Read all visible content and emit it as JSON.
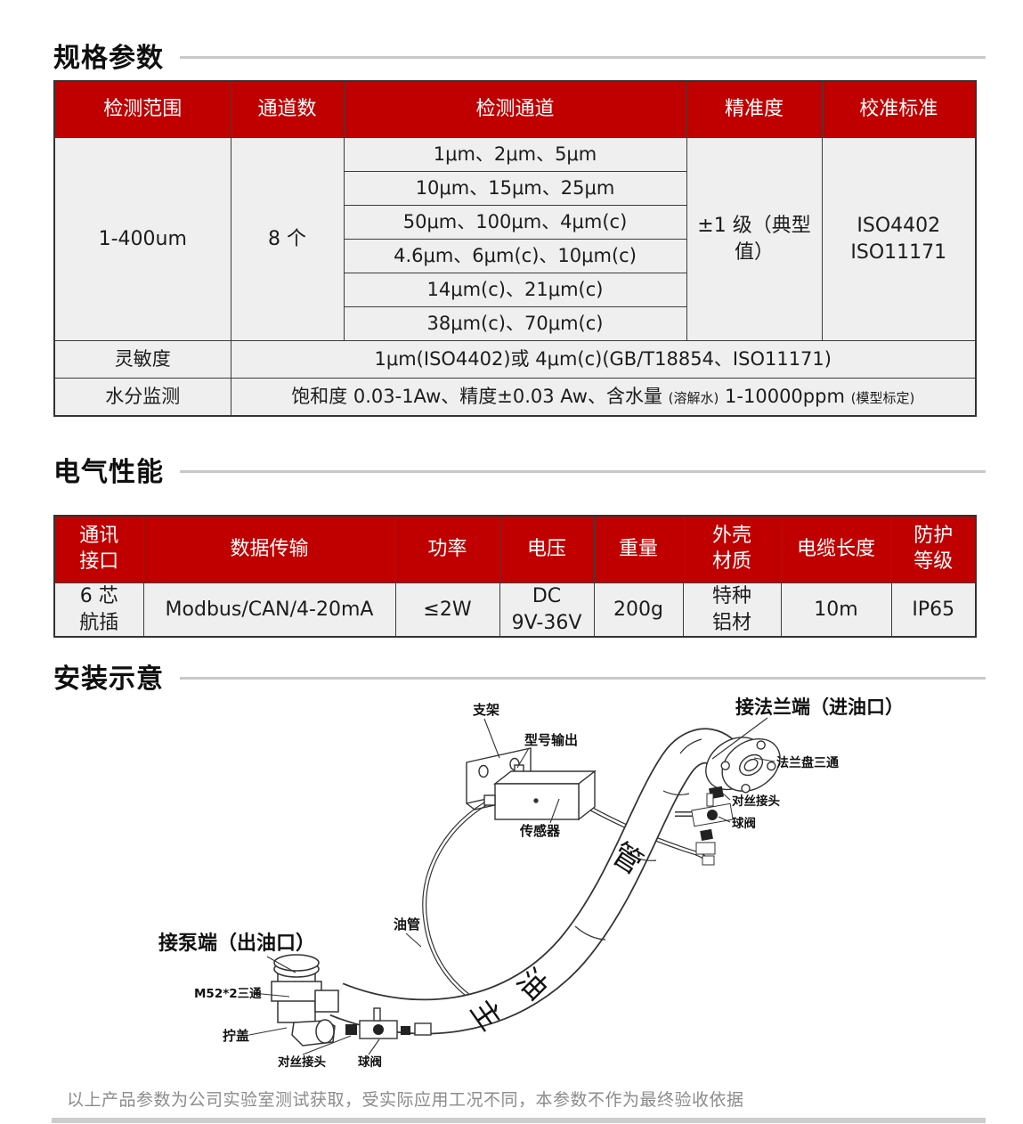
{
  "colors": {
    "header_red": "#c00000",
    "cell_bg": "#f0efef",
    "divider_gray": "#c9c9c9"
  },
  "sections": {
    "spec_title": "规格参数",
    "electrical_title": "电气性能",
    "install_title": "安装示意"
  },
  "spec_table": {
    "headers": [
      "检测范围",
      "通道数",
      "检测通道",
      "精准度",
      "校准标准"
    ],
    "range": "1-400um",
    "channel_count": "8 个",
    "channels": [
      "1μm、2μm、5μm",
      "10μm、15μm、25μm",
      "50μm、100μm、4μm(c)",
      "4.6μm、6μm(c)、10μm(c)",
      "14μm(c)、21μm(c)",
      "38μm(c)、70μm(c)"
    ],
    "accuracy": "±1 级（典型值）",
    "calibration": "ISO4402\nISO11171",
    "sensitivity_label": "灵敏度",
    "sensitivity_value": "1μm(ISO4402)或 4μm(c)(GB/T18854、ISO11171)",
    "moisture_label": "水分监测",
    "moisture_main1": "饱和度 0.03-1Aw、精度±0.03 Aw、含水量 ",
    "moisture_small1": "(溶解水)",
    "moisture_main2": " 1-10000ppm ",
    "moisture_small2": "(模型标定)"
  },
  "electrical_table": {
    "headers": [
      "通讯\n接口",
      "数据传输",
      "功率",
      "电压",
      "重量",
      "外壳\n材质",
      "电缆长度",
      "防护\n等级"
    ],
    "values": [
      "6 芯\n航插",
      "Modbus/CAN/4-20mA",
      "≤2W",
      "DC\n9V-36V",
      "200g",
      "特种\n铝材",
      "10m",
      "IP65"
    ]
  },
  "diagram": {
    "bracket": "支架",
    "signal_output": "型号输出",
    "sensor": "传感器",
    "flange_end": "接法兰端（进油口）",
    "flange_tee": "法兰盘三通",
    "union_joint_r": "对丝接头",
    "ball_valve_r": "球阀",
    "oil_tube": "油管",
    "pump_end": "接泵端（出油口）",
    "m52_tee": "M52*2三通",
    "screw_cap": "拧盖",
    "union_joint_l": "对丝接头",
    "ball_valve_l": "球阀",
    "pipe_char1": "主",
    "pipe_char2": "油",
    "pipe_char3": "管"
  },
  "footer_note": "以上产品参数为公司实验室测试获取，受实际应用工况不同，本参数不作为最终验收依据"
}
